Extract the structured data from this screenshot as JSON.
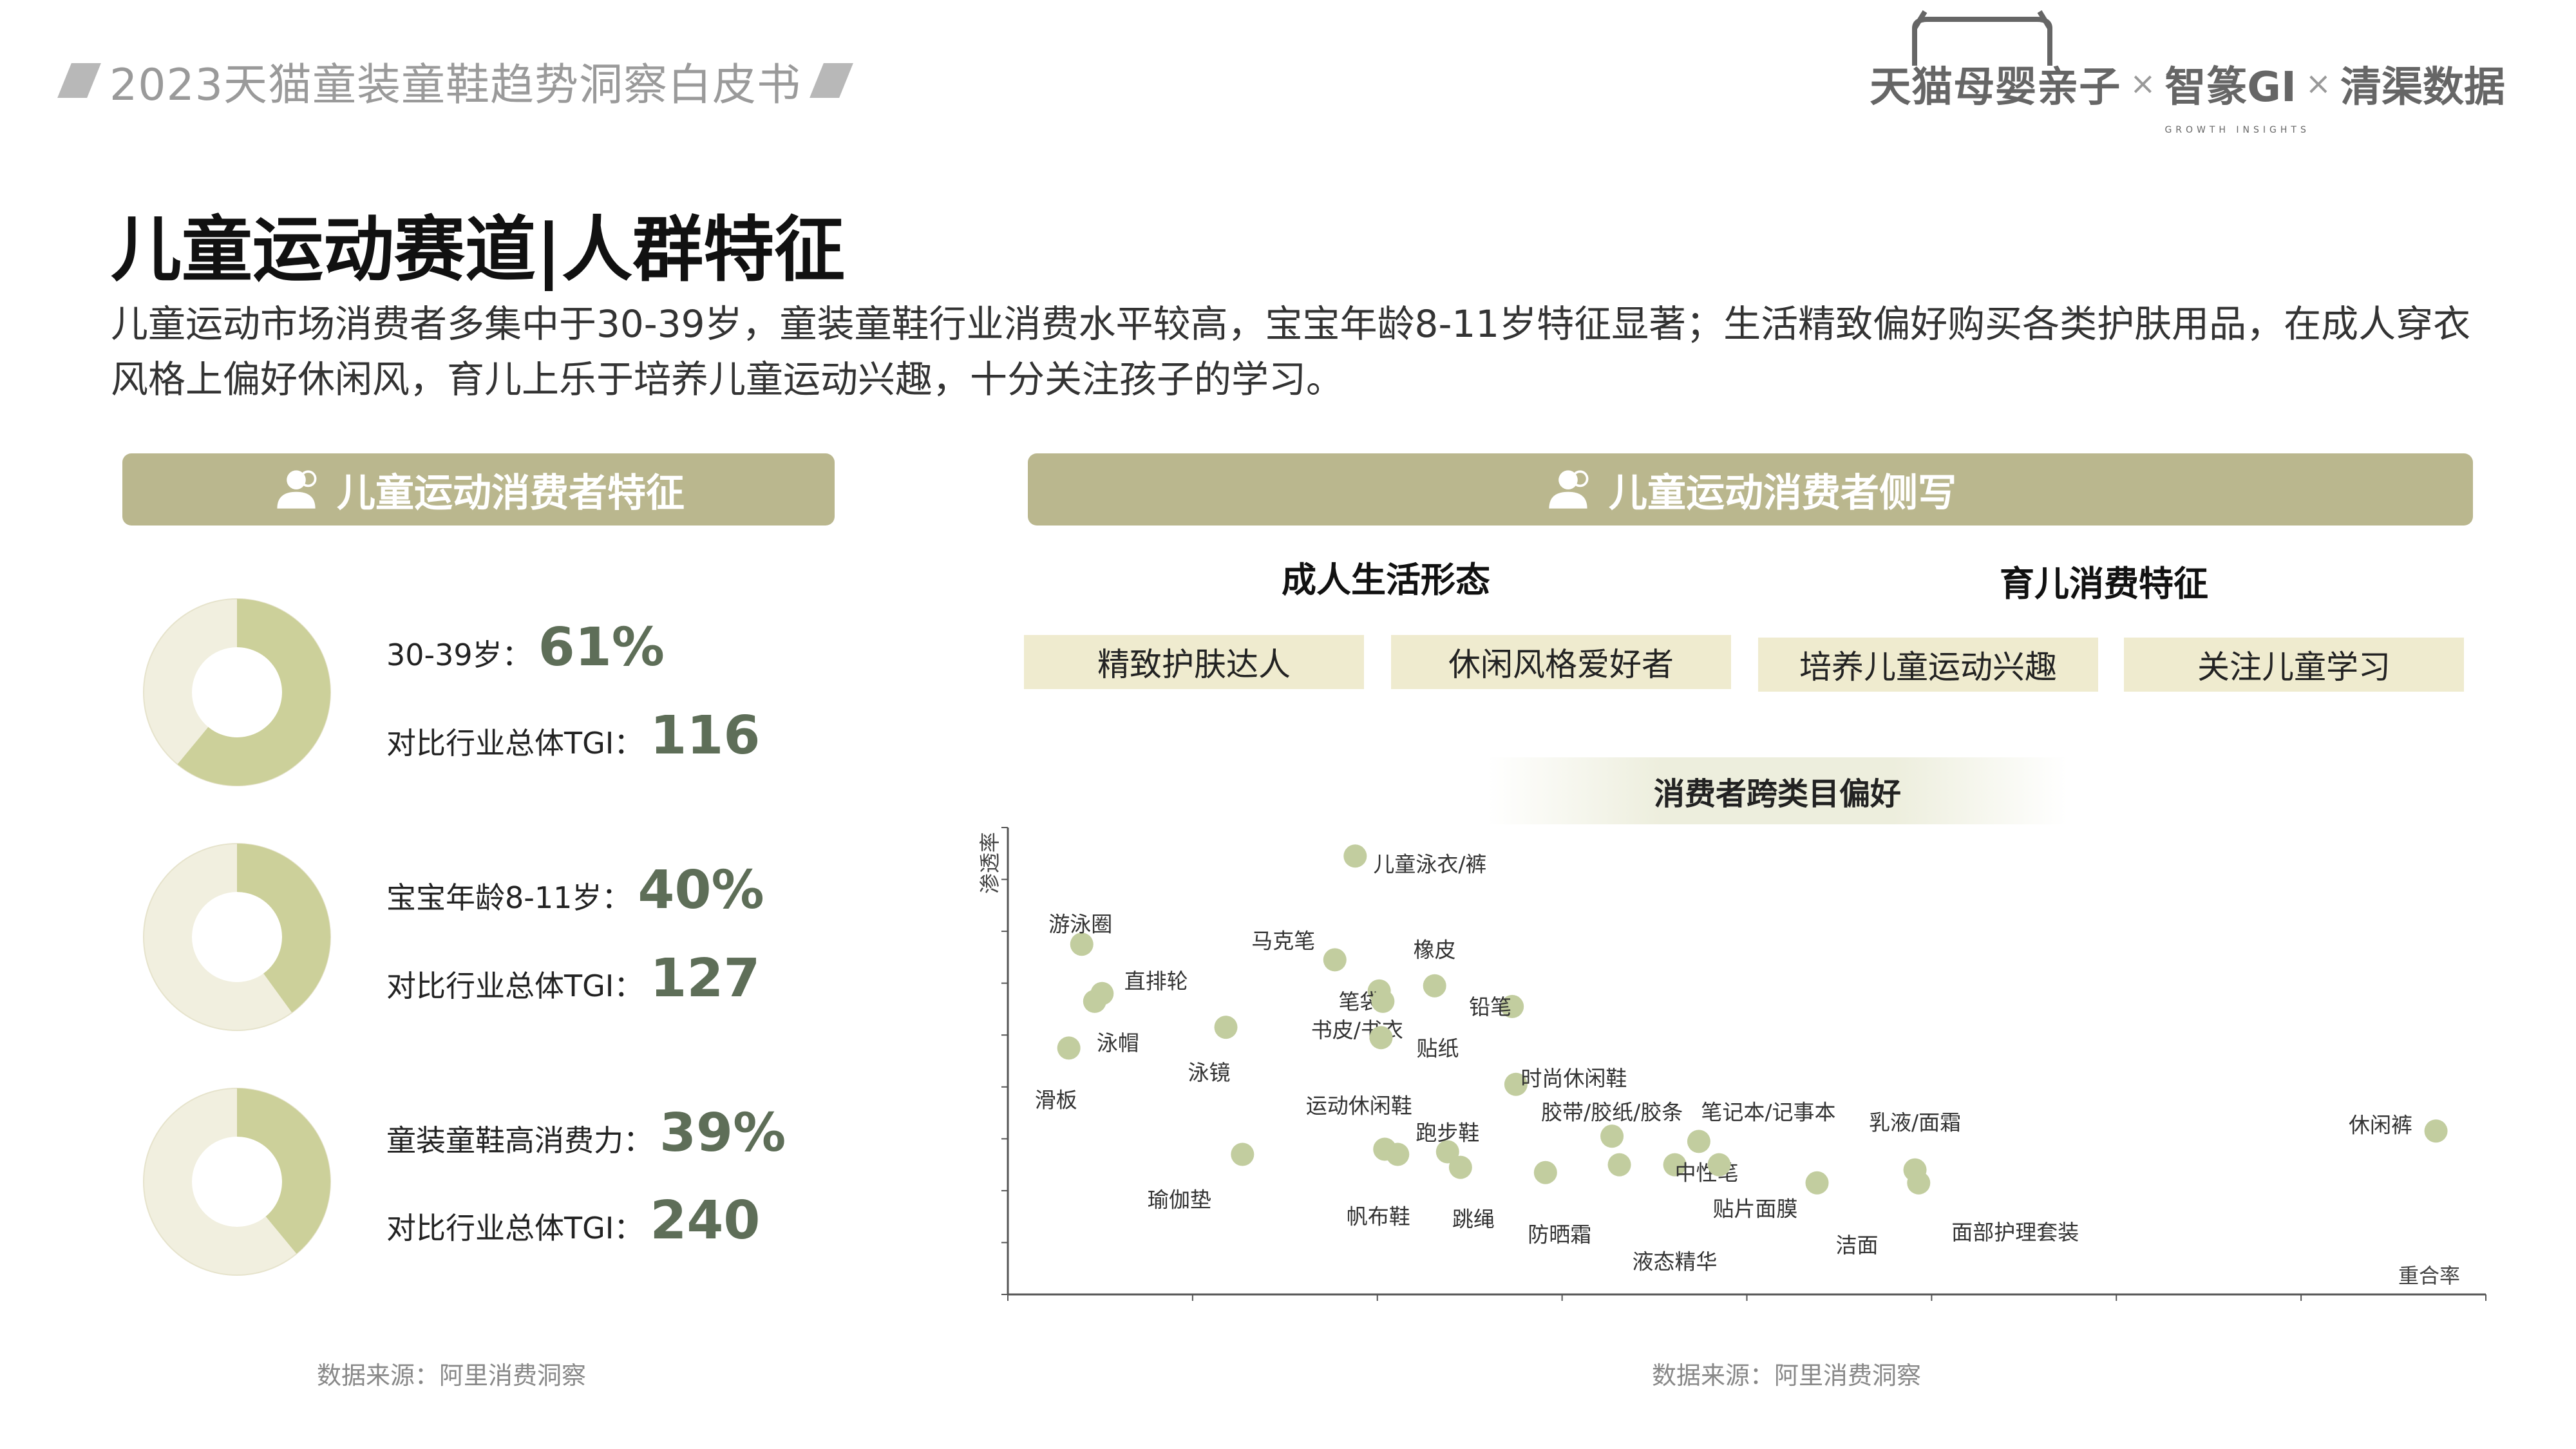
{
  "header": {
    "doc_title": "2023天猫童装童鞋趋势洞察白皮书"
  },
  "brand": {
    "tmall": "天猫母婴亲子",
    "sep": "×",
    "gi": "智篆GI",
    "gi_sub": "GROWTH INSIGHTS",
    "qingqu": "清渠数据"
  },
  "page": {
    "title": "儿童运动赛道|人群特征",
    "intro": "儿童运动市场消费者多集中于30-39岁，童装童鞋行业消费水平较高，宝宝年龄8-11岁特征显著；生活精致偏好购买各类护肤用品，在成人穿衣风格上偏好休闲风，育儿上乐于培养儿童运动兴趣，十分关注孩子的学习。"
  },
  "left_panel": {
    "title": "儿童运动消费者特征",
    "stats": [
      {
        "label": "30-39岁：",
        "value": "61%",
        "fraction": 0.61,
        "tgi_label": "对比行业总体TGI：",
        "tgi": "116"
      },
      {
        "label": "宝宝年龄8-11岁：",
        "value": "40%",
        "fraction": 0.4,
        "tgi_label": "对比行业总体TGI：",
        "tgi": "127"
      },
      {
        "label": "童装童鞋高消费力：",
        "value": "39%",
        "fraction": 0.39,
        "tgi_label": "对比行业总体TGI：",
        "tgi": "240"
      }
    ],
    "source": "数据来源：阿里消费洞察"
  },
  "right_panel": {
    "title": "儿童运动消费者侧写",
    "sub_left": "成人生活形态",
    "sub_right": "育儿消费特征",
    "tags": [
      "精致护肤达人",
      "休闲风格爱好者",
      "培养儿童运动兴趣",
      "关注儿童学习"
    ],
    "scatter_title": "消费者跨类目偏好",
    "source": "数据来源：阿里消费洞察"
  },
  "colors": {
    "accent": "#bab78e",
    "donut_fill": "#ccd09a",
    "donut_track": "#f1efdf",
    "point": "#c2cd9f",
    "value_text": "#5e6e58",
    "tag_bg": "#efebcf"
  },
  "chart_data": {
    "type": "scatter",
    "xlabel": "重合率",
    "ylabel": "渗透率",
    "grid": false,
    "points": [
      {
        "label": "儿童泳衣/裤",
        "x": 1.88,
        "y": 8.45
      },
      {
        "label": "游泳圈",
        "x": 0.4,
        "y": 6.75
      },
      {
        "label": "马克笔",
        "x": 1.77,
        "y": 6.45
      },
      {
        "label": "笔袋",
        "x": 2.01,
        "y": 5.85
      },
      {
        "label": "橡皮",
        "x": 2.31,
        "y": 5.95
      },
      {
        "label": "铅笔",
        "x": 2.73,
        "y": 5.55
      },
      {
        "label": "直排轮",
        "x": 0.51,
        "y": 5.8
      },
      {
        "label": "书皮/书衣",
        "x": 2.03,
        "y": 5.65
      },
      {
        "label": "泳帽",
        "x": 0.47,
        "y": 5.65
      },
      {
        "label": "泳镜",
        "x": 1.18,
        "y": 5.15
      },
      {
        "label": "贴纸",
        "x": 2.02,
        "y": 4.95
      },
      {
        "label": "滑板",
        "x": 0.33,
        "y": 4.75
      },
      {
        "label": "时尚休闲鞋",
        "x": 2.75,
        "y": 4.05
      },
      {
        "label": "运动休闲鞋",
        "x": 2.04,
        "y": 2.8
      },
      {
        "label": "跑步鞋",
        "x": 2.38,
        "y": 2.75
      },
      {
        "label": "胶带/胶纸/胶条",
        "x": 3.27,
        "y": 3.05
      },
      {
        "label": "笔记本/记事本",
        "x": 3.74,
        "y": 2.95
      },
      {
        "label": "中性笔",
        "x": 3.61,
        "y": 2.5
      },
      {
        "label": "瑜伽垫",
        "x": 1.27,
        "y": 2.7
      },
      {
        "label": "帆布鞋",
        "x": 2.11,
        "y": 2.7
      },
      {
        "label": "跳绳",
        "x": 2.45,
        "y": 2.45
      },
      {
        "label": "防晒霜",
        "x": 2.91,
        "y": 2.35
      },
      {
        "label": "液态精华",
        "x": 3.31,
        "y": 2.5
      },
      {
        "label": "贴片面膜",
        "x": 3.85,
        "y": 2.5
      },
      {
        "label": "洁面",
        "x": 4.38,
        "y": 2.15
      },
      {
        "label": "乳液/面霜",
        "x": 4.91,
        "y": 2.4
      },
      {
        "label": "面部护理套装",
        "x": 4.93,
        "y": 2.15
      },
      {
        "label": "休闲裤",
        "x": 7.73,
        "y": 3.15
      }
    ],
    "xlim": [
      0,
      8
    ],
    "ylim": [
      0,
      9
    ]
  }
}
